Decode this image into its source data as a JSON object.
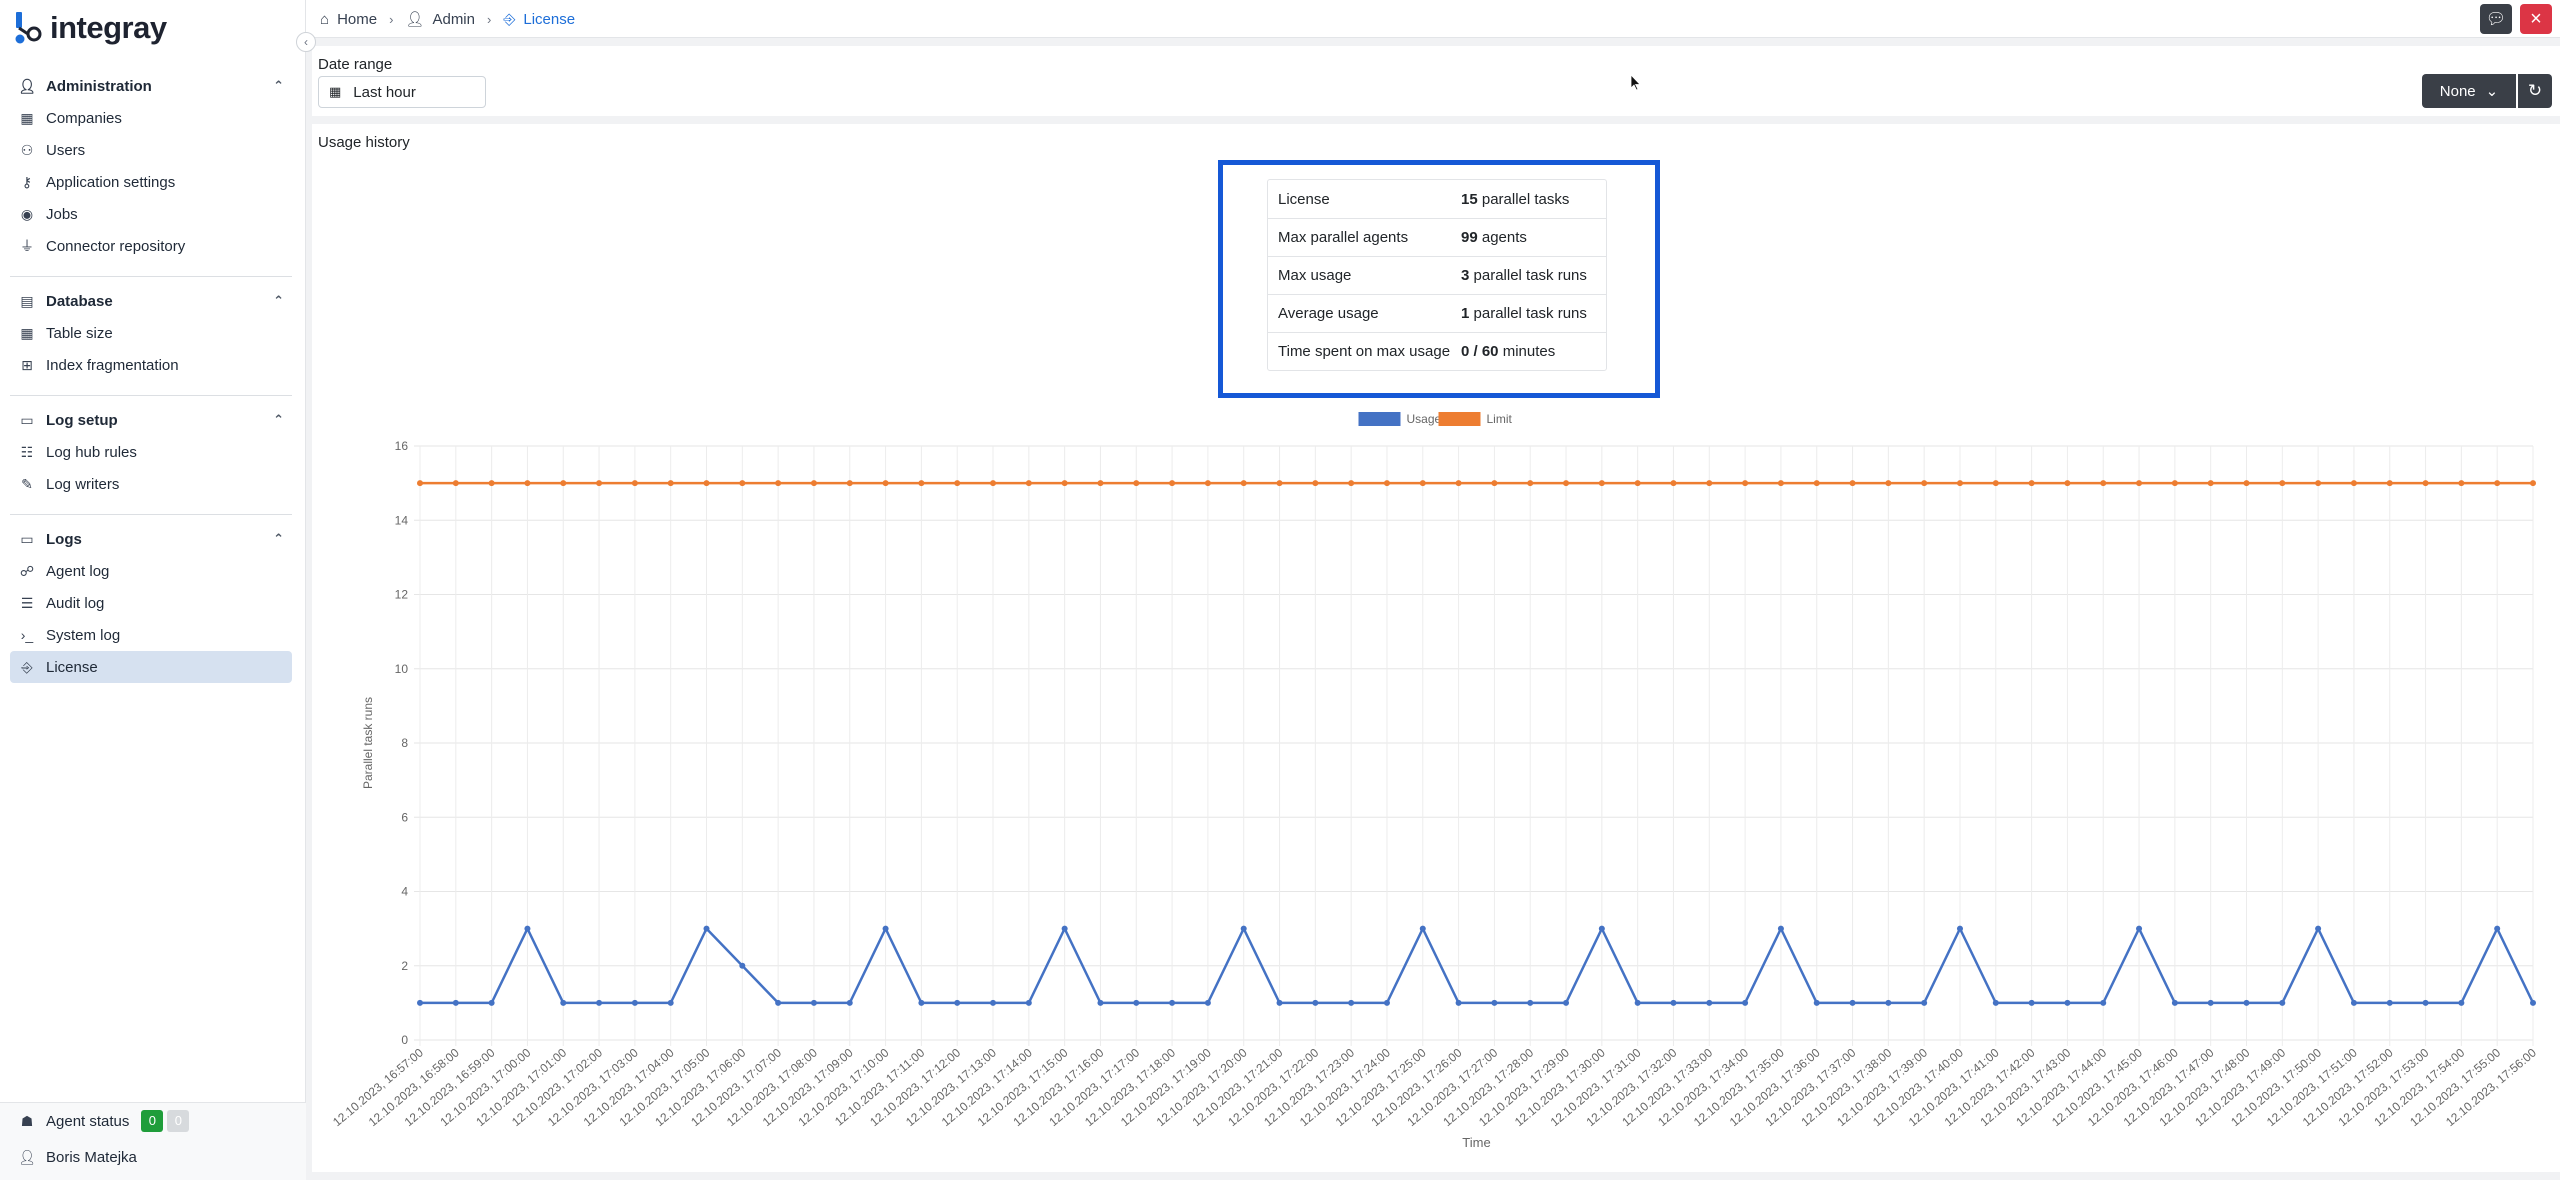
{
  "app": {
    "logo_text": "integray"
  },
  "sidebar": {
    "sections": [
      {
        "title": "Administration",
        "icon": "user-icon",
        "items": [
          {
            "label": "Companies",
            "icon": "building-icon"
          },
          {
            "label": "Users",
            "icon": "users-icon"
          },
          {
            "label": "Application settings",
            "icon": "key-icon"
          },
          {
            "label": "Jobs",
            "icon": "target-icon"
          },
          {
            "label": "Connector repository",
            "icon": "plug-icon"
          }
        ]
      },
      {
        "title": "Database",
        "icon": "database-icon",
        "items": [
          {
            "label": "Table size",
            "icon": "table-icon"
          },
          {
            "label": "Index fragmentation",
            "icon": "network-icon"
          }
        ]
      },
      {
        "title": "Log setup",
        "icon": "log-setup-icon",
        "items": [
          {
            "label": "Log hub rules",
            "icon": "rules-icon"
          },
          {
            "label": "Log writers",
            "icon": "pen-icon"
          }
        ]
      },
      {
        "title": "Logs",
        "icon": "logs-icon",
        "items": [
          {
            "label": "Agent log",
            "icon": "agent-log-icon"
          },
          {
            "label": "Audit log",
            "icon": "audit-log-icon"
          },
          {
            "label": "System log",
            "icon": "terminal-icon"
          },
          {
            "label": "License",
            "icon": "license-icon",
            "active": true
          }
        ]
      }
    ],
    "footer": {
      "agent_status_label": "Agent status",
      "agent_status_ok": "0",
      "agent_status_other": "0",
      "user_name": "Boris Matejka"
    }
  },
  "breadcrumb": {
    "home": "Home",
    "admin": "Admin",
    "current": "License"
  },
  "filter": {
    "label": "Date range",
    "value": "Last hour",
    "dropdown_value": "None"
  },
  "usage": {
    "title": "Usage history",
    "summary": [
      {
        "key": "License",
        "value_bold": "15",
        "value_rest": " parallel tasks"
      },
      {
        "key": "Max parallel agents",
        "value_bold": "99",
        "value_rest": " agents"
      },
      {
        "key": "Max usage",
        "value_bold": "3",
        "value_rest": " parallel task runs"
      },
      {
        "key": "Average usage",
        "value_bold": "1",
        "value_rest": " parallel task runs"
      },
      {
        "key": "Time spent on max usage",
        "value_bold": "0 / 60",
        "value_rest": " minutes"
      }
    ]
  },
  "colors": {
    "usage": "#4472c4",
    "limit": "#ed7d31",
    "accent": "#1d6ed8"
  },
  "chart_data": {
    "type": "line",
    "xlabel": "Time",
    "ylabel": "Parallel task runs",
    "ylim": [
      0,
      16
    ],
    "yticks": [
      0,
      2,
      4,
      6,
      8,
      10,
      12,
      14,
      16
    ],
    "grid": true,
    "legend_position": "top-center",
    "x": [
      "12.10.2023, 16:57:00",
      "12.10.2023, 16:58:00",
      "12.10.2023, 16:59:00",
      "12.10.2023, 17:00:00",
      "12.10.2023, 17:01:00",
      "12.10.2023, 17:02:00",
      "12.10.2023, 17:03:00",
      "12.10.2023, 17:04:00",
      "12.10.2023, 17:05:00",
      "12.10.2023, 17:06:00",
      "12.10.2023, 17:07:00",
      "12.10.2023, 17:08:00",
      "12.10.2023, 17:09:00",
      "12.10.2023, 17:10:00",
      "12.10.2023, 17:11:00",
      "12.10.2023, 17:12:00",
      "12.10.2023, 17:13:00",
      "12.10.2023, 17:14:00",
      "12.10.2023, 17:15:00",
      "12.10.2023, 17:16:00",
      "12.10.2023, 17:17:00",
      "12.10.2023, 17:18:00",
      "12.10.2023, 17:19:00",
      "12.10.2023, 17:20:00",
      "12.10.2023, 17:21:00",
      "12.10.2023, 17:22:00",
      "12.10.2023, 17:23:00",
      "12.10.2023, 17:24:00",
      "12.10.2023, 17:25:00",
      "12.10.2023, 17:26:00",
      "12.10.2023, 17:27:00",
      "12.10.2023, 17:28:00",
      "12.10.2023, 17:29:00",
      "12.10.2023, 17:30:00",
      "12.10.2023, 17:31:00",
      "12.10.2023, 17:32:00",
      "12.10.2023, 17:33:00",
      "12.10.2023, 17:34:00",
      "12.10.2023, 17:35:00",
      "12.10.2023, 17:36:00",
      "12.10.2023, 17:37:00",
      "12.10.2023, 17:38:00",
      "12.10.2023, 17:39:00",
      "12.10.2023, 17:40:00",
      "12.10.2023, 17:41:00",
      "12.10.2023, 17:42:00",
      "12.10.2023, 17:43:00",
      "12.10.2023, 17:44:00",
      "12.10.2023, 17:45:00",
      "12.10.2023, 17:46:00",
      "12.10.2023, 17:47:00",
      "12.10.2023, 17:48:00",
      "12.10.2023, 17:49:00",
      "12.10.2023, 17:50:00",
      "12.10.2023, 17:51:00",
      "12.10.2023, 17:52:00",
      "12.10.2023, 17:53:00",
      "12.10.2023, 17:54:00",
      "12.10.2023, 17:55:00",
      "12.10.2023, 17:56:00"
    ],
    "series": [
      {
        "name": "Usage",
        "values": [
          1,
          1,
          1,
          3,
          1,
          1,
          1,
          1,
          3,
          2,
          1,
          1,
          1,
          3,
          1,
          1,
          1,
          1,
          3,
          1,
          1,
          1,
          1,
          3,
          1,
          1,
          1,
          1,
          3,
          1,
          1,
          1,
          1,
          3,
          1,
          1,
          1,
          1,
          3,
          1,
          1,
          1,
          1,
          3,
          1,
          1,
          1,
          1,
          3,
          1,
          1,
          1,
          1,
          3,
          1,
          1,
          1,
          1,
          3,
          1
        ]
      },
      {
        "name": "Limit",
        "values": [
          15,
          15,
          15,
          15,
          15,
          15,
          15,
          15,
          15,
          15,
          15,
          15,
          15,
          15,
          15,
          15,
          15,
          15,
          15,
          15,
          15,
          15,
          15,
          15,
          15,
          15,
          15,
          15,
          15,
          15,
          15,
          15,
          15,
          15,
          15,
          15,
          15,
          15,
          15,
          15,
          15,
          15,
          15,
          15,
          15,
          15,
          15,
          15,
          15,
          15,
          15,
          15,
          15,
          15,
          15,
          15,
          15,
          15,
          15,
          15
        ]
      }
    ]
  }
}
